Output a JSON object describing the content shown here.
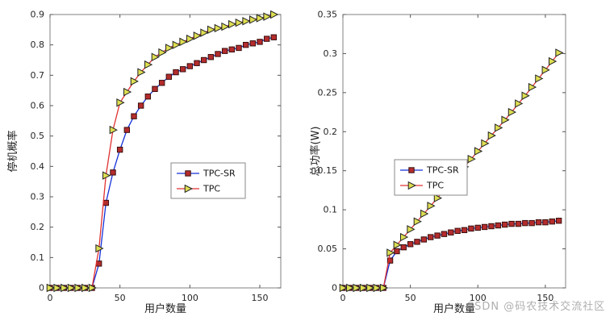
{
  "watermark": "CSDN @码农技术交流社区",
  "chart_data": [
    {
      "type": "line",
      "title": "",
      "xlabel": "用户数量",
      "ylabel": "停机概率",
      "xlim": [
        0,
        165
      ],
      "ylim": [
        0,
        0.9
      ],
      "xticks": [
        0,
        50,
        100,
        150
      ],
      "yticks": [
        0,
        0.1,
        0.2,
        0.3,
        0.4,
        0.5,
        0.6,
        0.7,
        0.8,
        0.9
      ],
      "grid": false,
      "legend_position": "center-right",
      "legend_entries": [
        "TPC-SR",
        "TPC"
      ],
      "series": [
        {
          "name": "TPC-SR",
          "line_color": "#1430d8",
          "marker": "square",
          "marker_fill": "#b52c2c",
          "marker_edge": "#3a0f0f",
          "x": [
            0,
            5,
            10,
            15,
            20,
            25,
            30,
            35,
            40,
            45,
            50,
            55,
            60,
            65,
            70,
            75,
            80,
            85,
            90,
            95,
            100,
            105,
            110,
            115,
            120,
            125,
            130,
            135,
            140,
            145,
            150,
            155,
            160
          ],
          "y": [
            0,
            0,
            0,
            0,
            0,
            0,
            0,
            0.08,
            0.28,
            0.38,
            0.455,
            0.52,
            0.565,
            0.6,
            0.63,
            0.655,
            0.675,
            0.695,
            0.71,
            0.72,
            0.73,
            0.74,
            0.75,
            0.76,
            0.77,
            0.78,
            0.785,
            0.79,
            0.8,
            0.805,
            0.81,
            0.82,
            0.825
          ]
        },
        {
          "name": "TPC",
          "line_color": "#e03131",
          "marker": "triangle-right",
          "marker_fill": "#dede52",
          "marker_edge": "#222222",
          "x": [
            0,
            5,
            10,
            15,
            20,
            25,
            30,
            35,
            40,
            45,
            50,
            55,
            60,
            65,
            70,
            75,
            80,
            85,
            90,
            95,
            100,
            105,
            110,
            115,
            120,
            125,
            130,
            135,
            140,
            145,
            150,
            155,
            160
          ],
          "y": [
            0,
            0,
            0,
            0,
            0,
            0,
            0,
            0.13,
            0.37,
            0.52,
            0.61,
            0.645,
            0.68,
            0.71,
            0.735,
            0.76,
            0.775,
            0.79,
            0.8,
            0.81,
            0.82,
            0.83,
            0.84,
            0.85,
            0.855,
            0.86,
            0.868,
            0.873,
            0.878,
            0.883,
            0.888,
            0.893,
            0.9
          ]
        }
      ]
    },
    {
      "type": "line",
      "title": "",
      "xlabel": "用户数量",
      "ylabel": "总功率(W)",
      "xlim": [
        0,
        165
      ],
      "ylim": [
        0,
        0.35
      ],
      "xticks": [
        0,
        50,
        100,
        150
      ],
      "yticks": [
        0,
        0.05,
        0.1,
        0.15,
        0.2,
        0.25,
        0.3,
        0.35
      ],
      "grid": false,
      "legend_position": "center-left",
      "legend_entries": [
        "TPC-SR",
        "TPC"
      ],
      "series": [
        {
          "name": "TPC-SR",
          "line_color": "#1430d8",
          "marker": "square",
          "marker_fill": "#b52c2c",
          "marker_edge": "#3a0f0f",
          "x": [
            0,
            5,
            10,
            15,
            20,
            25,
            30,
            35,
            40,
            45,
            50,
            55,
            60,
            65,
            70,
            75,
            80,
            85,
            90,
            95,
            100,
            105,
            110,
            115,
            120,
            125,
            130,
            135,
            140,
            145,
            150,
            155,
            160
          ],
          "y": [
            0,
            0,
            0,
            0,
            0,
            0,
            0,
            0.035,
            0.047,
            0.052,
            0.056,
            0.059,
            0.062,
            0.065,
            0.067,
            0.069,
            0.071,
            0.073,
            0.074,
            0.076,
            0.077,
            0.078,
            0.079,
            0.08,
            0.081,
            0.082,
            0.082,
            0.083,
            0.083,
            0.084,
            0.084,
            0.085,
            0.086
          ]
        },
        {
          "name": "TPC",
          "line_color": "#e03131",
          "marker": "triangle-right",
          "marker_fill": "#dede52",
          "marker_edge": "#222222",
          "x": [
            0,
            5,
            10,
            15,
            20,
            25,
            30,
            35,
            40,
            45,
            50,
            55,
            60,
            65,
            70,
            75,
            80,
            85,
            90,
            95,
            100,
            105,
            110,
            115,
            120,
            125,
            130,
            135,
            140,
            145,
            150,
            155,
            160
          ],
          "y": [
            0,
            0,
            0,
            0,
            0,
            0,
            0,
            0.045,
            0.055,
            0.065,
            0.075,
            0.085,
            0.095,
            0.105,
            0.115,
            0.125,
            0.135,
            0.145,
            0.155,
            0.165,
            0.175,
            0.185,
            0.195,
            0.205,
            0.215,
            0.225,
            0.236,
            0.246,
            0.257,
            0.268,
            0.279,
            0.29,
            0.301
          ]
        }
      ]
    }
  ]
}
